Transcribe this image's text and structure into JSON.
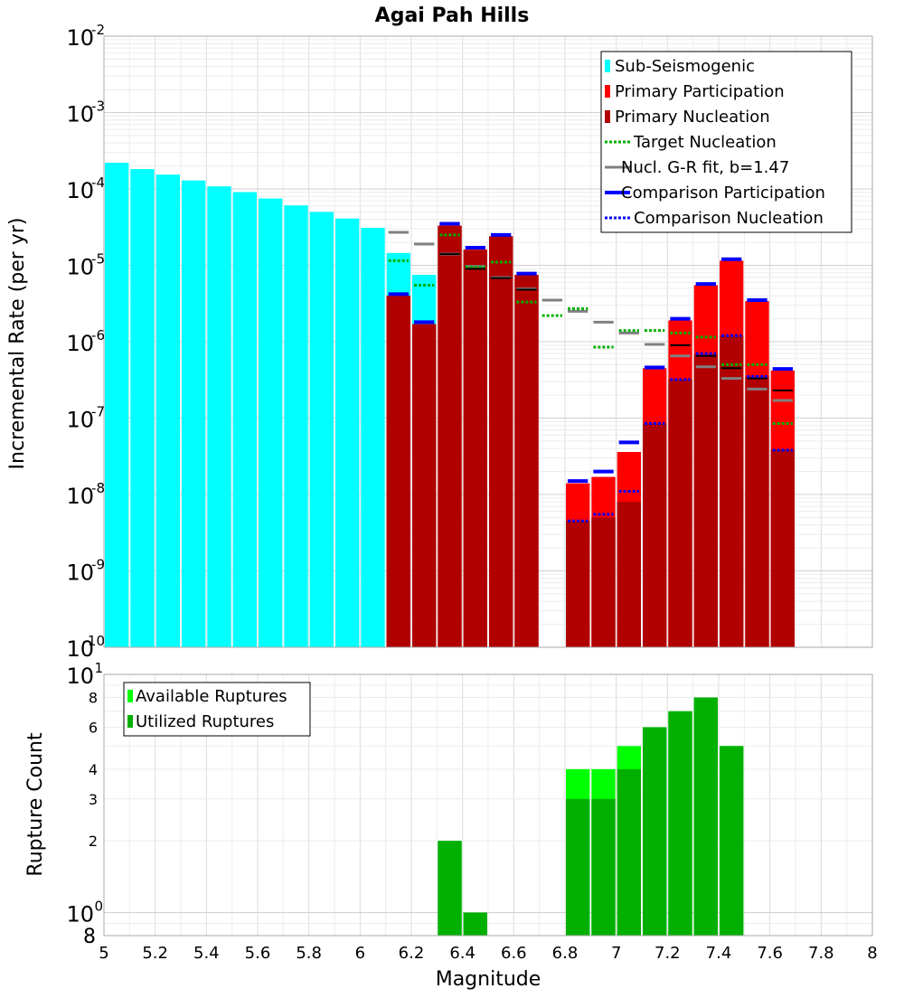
{
  "chart_data": [
    {
      "type": "bar",
      "title": "Agai Pah Hills",
      "ylabel": "Incremental Rate (per yr)",
      "yscale": "log",
      "ylim": [
        1e-10,
        0.01
      ],
      "xlim": [
        5,
        8
      ],
      "bin_width": 0.1,
      "y_tick_bases": [
        "10",
        "10",
        "10",
        "10",
        "10",
        "10",
        "10",
        "10",
        "10"
      ],
      "y_tick_exponents": [
        "-2",
        "-3",
        "-4",
        "-5",
        "-6",
        "-7",
        "-8",
        "-9",
        "-10"
      ],
      "legend": {
        "position": "top-right",
        "entries": [
          {
            "label": "Sub-Seismogenic",
            "style": "box",
            "color": "#00ffff"
          },
          {
            "label": "Primary Participation",
            "style": "box",
            "color": "#ff0000"
          },
          {
            "label": "Primary Nucleation",
            "style": "box",
            "color": "#b00000"
          },
          {
            "label": "Target Nucleation",
            "style": "dotted",
            "color": "#00b000"
          },
          {
            "label": "Nucl. G-R fit, b=1.47",
            "style": "solid",
            "color": "#808080"
          },
          {
            "label": "Comparison Participation",
            "style": "solid-thick",
            "color": "#0000ff"
          },
          {
            "label": "Comparison Nucleation",
            "style": "dotted",
            "color": "#0000ff"
          }
        ]
      },
      "series": [
        {
          "name": "Sub-Seismogenic",
          "color": "#00ffff",
          "x": [
            5.05,
            5.15,
            5.25,
            5.35,
            5.45,
            5.55,
            5.65,
            5.75,
            5.85,
            5.95,
            6.05,
            6.15,
            6.25
          ],
          "values": [
            0.00022,
            0.000182,
            0.000154,
            0.000129,
            0.000108,
            9.1e-05,
            7.5e-05,
            6.1e-05,
            5e-05,
            4.1e-05,
            3.1e-05,
            1.45e-05,
            7.5e-06
          ]
        },
        {
          "name": "Primary Participation",
          "color": "#ff0000",
          "x": [
            6.15,
            6.25,
            6.35,
            6.45,
            6.55,
            6.65,
            6.85,
            6.95,
            7.05,
            7.15,
            7.25,
            7.35,
            7.45,
            7.55,
            7.65
          ],
          "values": [
            4e-06,
            1.7e-06,
            3.3e-05,
            1.6e-05,
            2.4e-05,
            7.5e-06,
            1.4e-08,
            1.7e-08,
            3.6e-08,
            4.5e-07,
            1.9e-06,
            5.5e-06,
            1.15e-05,
            3.4e-06,
            4.2e-07
          ]
        },
        {
          "name": "Primary Nucleation",
          "color": "#b00000",
          "x": [
            6.15,
            6.25,
            6.35,
            6.45,
            6.55,
            6.65,
            6.85,
            6.95,
            7.05,
            7.15,
            7.25,
            7.35,
            7.45,
            7.55,
            7.65
          ],
          "values": [
            4e-06,
            1.7e-06,
            3.3e-05,
            1.6e-05,
            2.4e-05,
            7.5e-06,
            4.5e-09,
            5e-09,
            8e-09,
            8.5e-08,
            3.2e-07,
            6.8e-07,
            1.2e-06,
            3.5e-07,
            3.9e-08
          ]
        },
        {
          "name": "Target Nucleation",
          "color": "#00b000",
          "x": [
            6.15,
            6.25,
            6.35,
            6.45,
            6.55,
            6.65,
            6.75,
            6.85,
            6.95,
            7.05,
            7.15,
            7.25,
            7.35,
            7.45,
            7.55,
            7.65
          ],
          "values": [
            1.15e-05,
            5.5e-06,
            2.5e-05,
            9.5e-06,
            1.1e-05,
            3.3e-06,
            2.2e-06,
            2.7e-06,
            8.5e-07,
            1.4e-06,
            1.4e-06,
            1.3e-06,
            1.15e-06,
            5e-07,
            5e-07,
            8.5e-08
          ]
        },
        {
          "name": "Nucl. G-R fit, b=1.47",
          "color": "#808080",
          "x": [
            6.15,
            6.25,
            6.35,
            6.45,
            6.55,
            6.65,
            6.75,
            6.85,
            6.95,
            7.05,
            7.15,
            7.25,
            7.35,
            7.45,
            7.55,
            7.65
          ],
          "values": [
            2.7e-05,
            1.9e-05,
            1.4e-05,
            9.7e-06,
            6.9e-06,
            4.9e-06,
            3.5e-06,
            2.5e-06,
            1.8e-06,
            1.3e-06,
            9.2e-07,
            6.5e-07,
            4.7e-07,
            3.3e-07,
            2.4e-07,
            1.7e-07
          ]
        },
        {
          "name": "Comparison Participation",
          "color": "#0000ff",
          "x": [
            6.15,
            6.25,
            6.35,
            6.45,
            6.55,
            6.65,
            6.85,
            6.95,
            7.05,
            7.15,
            7.25,
            7.35,
            7.45,
            7.55,
            7.65
          ],
          "values": [
            4.2e-06,
            1.8e-06,
            3.5e-05,
            1.7e-05,
            2.5e-05,
            7.8e-06,
            1.5e-08,
            2e-08,
            4.8e-08,
            4.6e-07,
            2e-06,
            5.7e-06,
            1.2e-05,
            3.5e-06,
            4.4e-07
          ]
        },
        {
          "name": "Comparison Nucleation",
          "color": "#0000ff",
          "x": [
            6.85,
            6.95,
            7.05,
            7.15,
            7.25,
            7.35,
            7.45,
            7.55,
            7.65
          ],
          "values": [
            4.5e-09,
            5.5e-09,
            1.1e-08,
            8.5e-08,
            3.2e-07,
            7e-07,
            1.2e-06,
            3.5e-07,
            3.8e-08
          ]
        }
      ],
      "black_markers": {
        "color": "#000000",
        "x": [
          6.35,
          6.45,
          6.55,
          6.65,
          7.25,
          7.35,
          7.45,
          7.55,
          7.65
        ],
        "values": [
          1.4e-05,
          9e-06,
          6.8e-06,
          4.8e-06,
          9e-07,
          6.5e-07,
          4.5e-07,
          3.3e-07,
          2.3e-07
        ]
      }
    },
    {
      "type": "bar",
      "xlabel": "Magnitude",
      "ylabel": "Rupture Count",
      "yscale": "log",
      "ylim": [
        0.8,
        10
      ],
      "xlim": [
        5,
        8
      ],
      "x_ticks": [
        "5",
        "5.2",
        "5.4",
        "5.6",
        "5.8",
        "6",
        "6.2",
        "6.4",
        "6.6",
        "6.8",
        "7",
        "7.2",
        "7.4",
        "7.6",
        "7.8",
        "8"
      ],
      "y_tick_labels": {
        "top_base": "10",
        "top_exp": "1",
        "v8": "8",
        "v6": "6",
        "v4": "4",
        "v3": "3",
        "v2": "2",
        "one_base": "10",
        "one_exp": "0",
        "bottom": "8"
      },
      "legend": {
        "position": "top-left",
        "entries": [
          {
            "label": "Available Ruptures",
            "color": "#00ff00"
          },
          {
            "label": "Utilized Ruptures",
            "color": "#00b000"
          }
        ]
      },
      "series": [
        {
          "name": "Available Ruptures",
          "color": "#00ff00",
          "x": [
            6.35,
            6.45,
            6.85,
            6.95,
            7.05,
            7.15,
            7.25,
            7.35,
            7.45
          ],
          "values": [
            2,
            1,
            4,
            4,
            5,
            6,
            7,
            8,
            5
          ]
        },
        {
          "name": "Utilized Ruptures",
          "color": "#00b000",
          "x": [
            6.35,
            6.45,
            6.85,
            6.95,
            7.05,
            7.15,
            7.25,
            7.35,
            7.45
          ],
          "values": [
            2,
            1,
            3,
            3,
            4,
            6,
            7,
            8,
            5
          ]
        }
      ]
    }
  ]
}
